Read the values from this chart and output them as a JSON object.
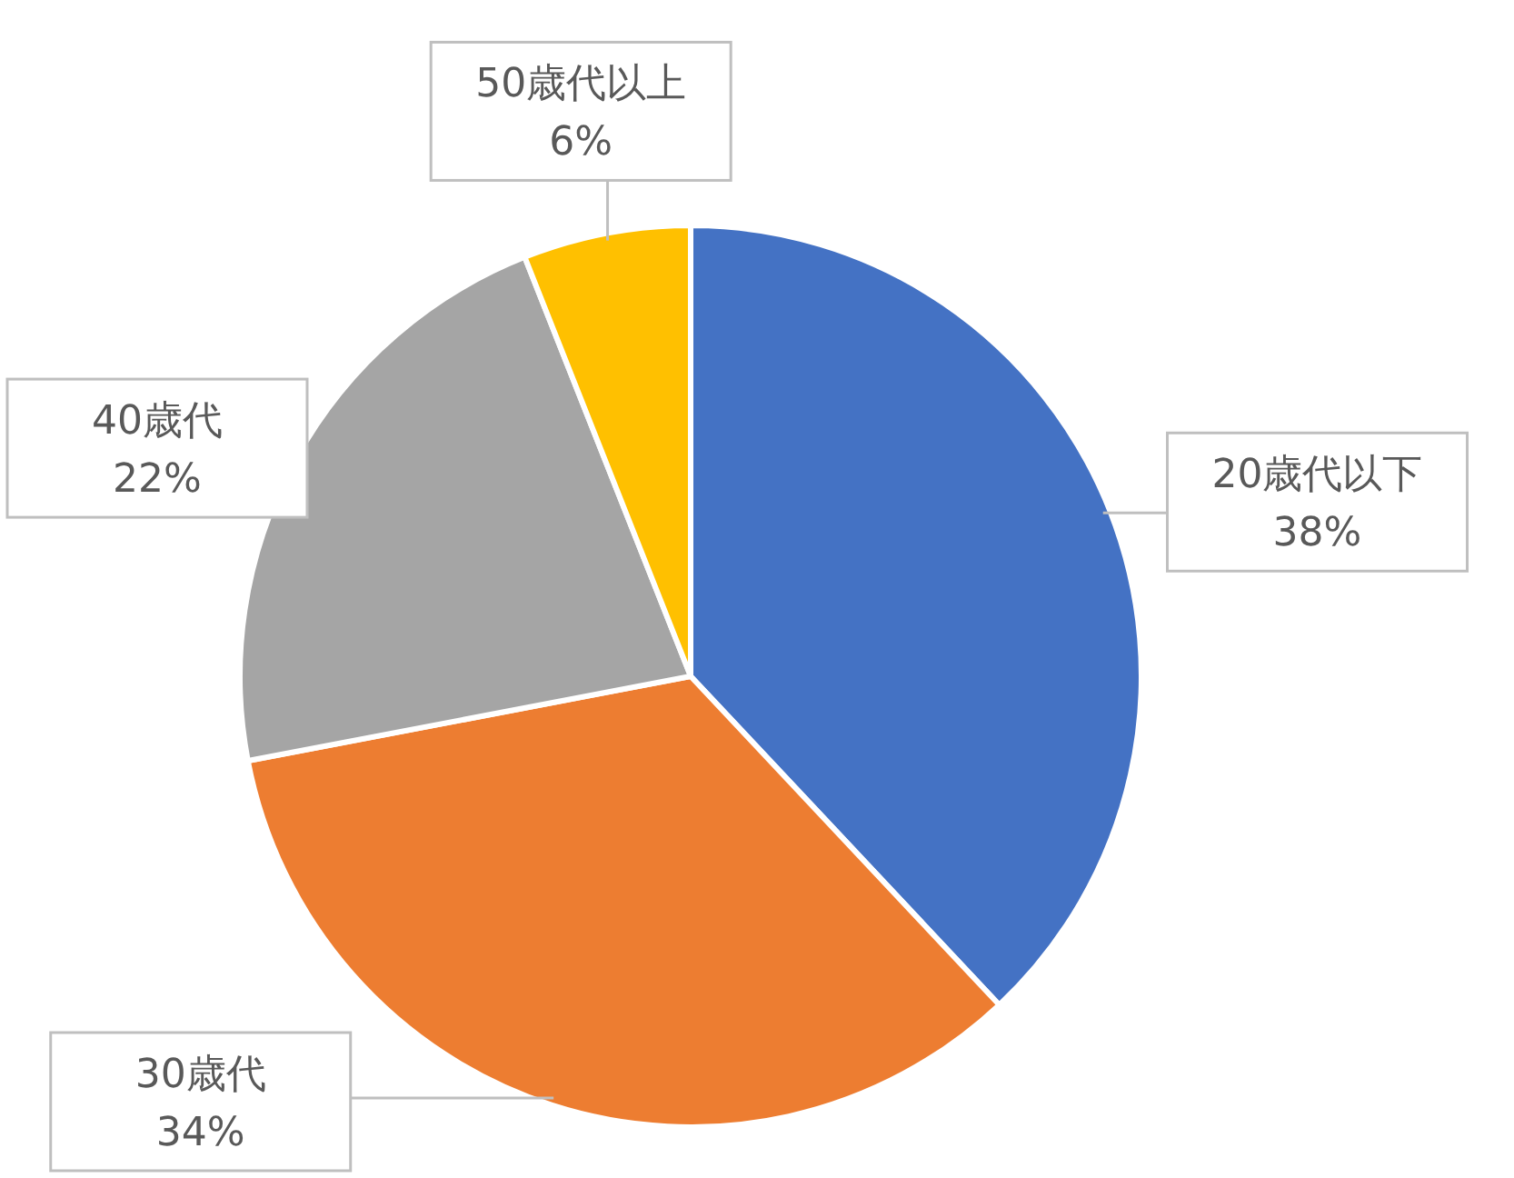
{
  "chart_data": {
    "type": "pie",
    "categories": [
      "20歳代以下",
      "30歳代",
      "40歳代",
      "50歳代以上"
    ],
    "values": [
      38,
      34,
      22,
      6
    ],
    "colors": [
      "#4472c4",
      "#ed7d31",
      "#a5a5a5",
      "#ffc000"
    ],
    "value_labels": [
      "38%",
      "34%",
      "22%",
      "6%"
    ]
  }
}
